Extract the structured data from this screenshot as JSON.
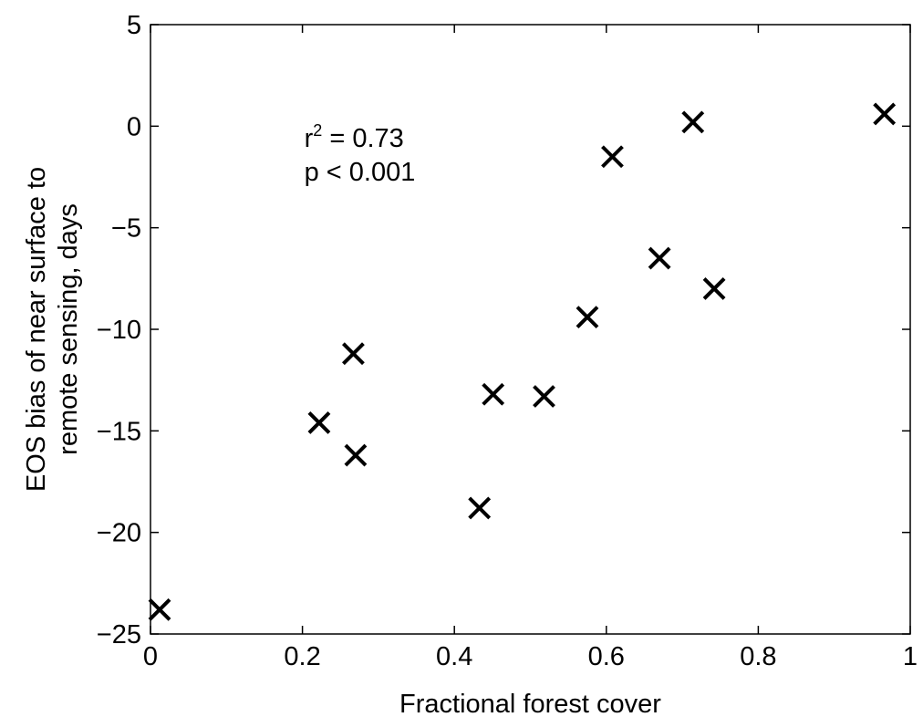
{
  "chart_data": {
    "type": "scatter",
    "xlabel": "Fractional forest cover",
    "ylabel_lines": [
      "EOS bias of near surface to",
      "remote sensing, days"
    ],
    "xlim": [
      0,
      1
    ],
    "ylim": [
      -25,
      5
    ],
    "xticks": [
      0,
      0.2,
      0.4,
      0.6,
      0.8,
      1
    ],
    "xtick_labels": [
      "0",
      "0.2",
      "0.4",
      "0.6",
      "0.8",
      "1"
    ],
    "yticks": [
      -25,
      -20,
      -15,
      -10,
      -5,
      0,
      5
    ],
    "ytick_labels": [
      "−25",
      "−20",
      "−15",
      "−10",
      "−5",
      "0",
      "5"
    ],
    "grid": false,
    "marker": "x",
    "marker_color": "#000000",
    "annotation": {
      "r_base": "r",
      "r_sup": "2",
      "r_rest": " = 0.73",
      "p_text": "p < 0.001",
      "anchor_x": 0.2,
      "anchor_y": -0.2
    },
    "points": [
      {
        "x": 0.012,
        "y": -23.8
      },
      {
        "x": 0.222,
        "y": -14.6
      },
      {
        "x": 0.267,
        "y": -11.2
      },
      {
        "x": 0.27,
        "y": -16.2
      },
      {
        "x": 0.433,
        "y": -18.8
      },
      {
        "x": 0.451,
        "y": -13.2
      },
      {
        "x": 0.518,
        "y": -13.3
      },
      {
        "x": 0.575,
        "y": -9.4
      },
      {
        "x": 0.608,
        "y": -1.5
      },
      {
        "x": 0.67,
        "y": -6.5
      },
      {
        "x": 0.714,
        "y": 0.2
      },
      {
        "x": 0.742,
        "y": -8.0
      },
      {
        "x": 0.966,
        "y": 0.6
      }
    ]
  }
}
